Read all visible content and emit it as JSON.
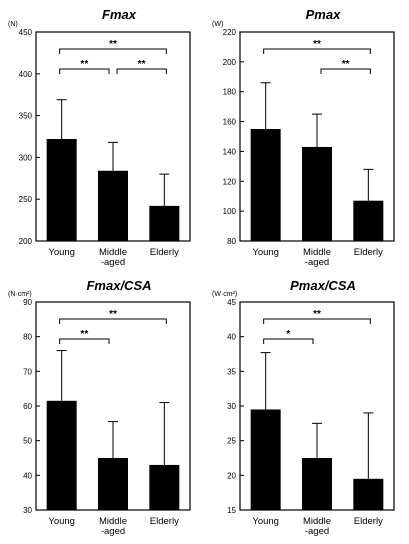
{
  "chart_data": [
    {
      "type": "bar",
      "title": "Fmax",
      "unit": "(N)",
      "categories": [
        "Young",
        "Middle\n-aged",
        "Elderly"
      ],
      "values": [
        322,
        284,
        242
      ],
      "error_plus": [
        47,
        34,
        38
      ],
      "ylim": [
        200,
        450
      ],
      "yticks": [
        200,
        250,
        300,
        350,
        400,
        450
      ],
      "significance": [
        {
          "from": 0,
          "to": 2,
          "label": "**"
        },
        {
          "from": 0,
          "to": 1,
          "label": "**"
        },
        {
          "from": 1,
          "to": 2,
          "label": "**"
        }
      ]
    },
    {
      "type": "bar",
      "title": "Pmax",
      "unit": "(W)",
      "categories": [
        "Young",
        "Middle\n-aged",
        "Elderly"
      ],
      "values": [
        155,
        143,
        107
      ],
      "error_plus": [
        31,
        22,
        21
      ],
      "ylim": [
        80,
        220
      ],
      "yticks": [
        80,
        100,
        120,
        140,
        160,
        180,
        200,
        220
      ],
      "significance": [
        {
          "from": 0,
          "to": 2,
          "label": "**"
        },
        {
          "from": 1,
          "to": 2,
          "label": "**"
        }
      ]
    },
    {
      "type": "bar",
      "title": "Fmax/CSA",
      "unit": "(N·cm²)",
      "categories": [
        "Young",
        "Middle\n-aged",
        "Elderly"
      ],
      "values": [
        61.5,
        45,
        43
      ],
      "error_plus": [
        14.5,
        10.5,
        18
      ],
      "ylim": [
        30,
        90
      ],
      "yticks": [
        30,
        40,
        50,
        60,
        70,
        80,
        90
      ],
      "significance": [
        {
          "from": 0,
          "to": 2,
          "label": "**"
        },
        {
          "from": 0,
          "to": 1,
          "label": "**"
        }
      ]
    },
    {
      "type": "bar",
      "title": "Pmax/CSA",
      "unit": "(W·cm²)",
      "categories": [
        "Young",
        "Middle\n-aged",
        "Elderly"
      ],
      "values": [
        29.5,
        22.5,
        19.5
      ],
      "error_plus": [
        8.2,
        5,
        9.5
      ],
      "ylim": [
        15,
        45
      ],
      "yticks": [
        15,
        20,
        25,
        30,
        35,
        40,
        45
      ],
      "significance": [
        {
          "from": 0,
          "to": 2,
          "label": "**"
        },
        {
          "from": 0,
          "to": 1,
          "label": "*"
        }
      ]
    }
  ]
}
